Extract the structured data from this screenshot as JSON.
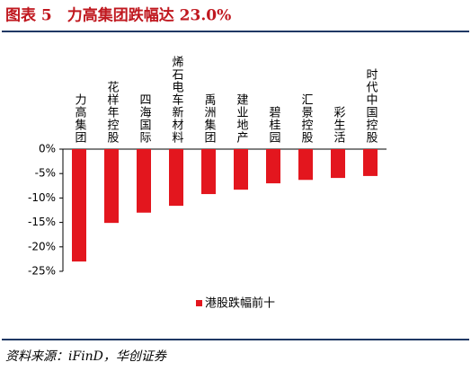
{
  "chart_data": {
    "type": "bar",
    "title": "图表 5　力高集团跌幅达 23.0%",
    "categories": [
      "力高集团",
      "花样年控股",
      "四海国际",
      "烯石电车新材料",
      "禹洲集团",
      "建业地产",
      "碧桂园",
      "汇景控股",
      "彩生活",
      "时代中国控股"
    ],
    "series": [
      {
        "name": "港股跌幅前十",
        "color": "#e3161e",
        "values": [
          -23.0,
          -15.1,
          -13.0,
          -11.6,
          -9.2,
          -8.3,
          -7.0,
          -6.3,
          -5.9,
          -5.5
        ]
      }
    ],
    "ylim": [
      -25,
      0
    ],
    "yticks": [
      {
        "value": 0,
        "label": "0%"
      },
      {
        "value": -5,
        "label": "-5%"
      },
      {
        "value": -10,
        "label": "-10%"
      },
      {
        "value": -15,
        "label": "-15%"
      },
      {
        "value": -20,
        "label": "-20%"
      },
      {
        "value": -25,
        "label": "-25%"
      }
    ],
    "legend": "bottom",
    "source": "资料来源：iFinD，华创证券"
  }
}
